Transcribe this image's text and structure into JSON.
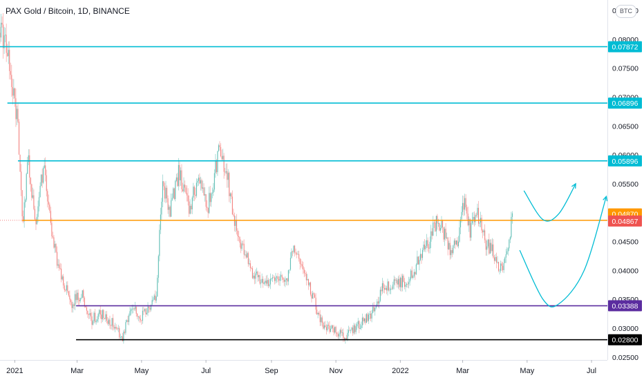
{
  "header": {
    "title": "PAX Gold / Bitcoin, 1D, BINANCE",
    "currency": "BTC"
  },
  "chart_data": {
    "type": "candlestick",
    "title": "PAX Gold / Bitcoin, 1D, BINANCE",
    "currency": "BTC",
    "ylim": [
      0.0245,
      0.0868
    ],
    "y_ticks": [
      "0.02500",
      "0.03000",
      "0.03500",
      "0.04000",
      "0.04500",
      "0.05000",
      "0.05500",
      "0.06000",
      "0.06500",
      "0.07000",
      "0.07500",
      "0.08000",
      "0.08500"
    ],
    "x_range": [
      "2020-12-18",
      "2022-07-16"
    ],
    "x_ticks": [
      {
        "date": "2021-01-01",
        "label": "2021"
      },
      {
        "date": "2021-03-01",
        "label": "Mar"
      },
      {
        "date": "2021-05-01",
        "label": "May"
      },
      {
        "date": "2021-07-01",
        "label": "Jul"
      },
      {
        "date": "2021-09-01",
        "label": "Sep"
      },
      {
        "date": "2021-11-01",
        "label": "Nov"
      },
      {
        "date": "2022-01-01",
        "label": "2022"
      },
      {
        "date": "2022-03-01",
        "label": "Mar"
      },
      {
        "date": "2022-05-01",
        "label": "May"
      },
      {
        "date": "2022-07-01",
        "label": "Jul"
      }
    ],
    "horizontal_levels": [
      {
        "value": 0.07872,
        "label": "0.07872",
        "color": "#00bcd4",
        "start": "2020-12-18"
      },
      {
        "value": 0.06896,
        "label": "0.06896",
        "color": "#00bcd4",
        "start": "2020-12-25"
      },
      {
        "value": 0.05896,
        "label": "0.05896",
        "color": "#00bcd4",
        "start": "2021-01-04"
      },
      {
        "value": 0.04867,
        "label": "0.04867",
        "color": "#ff9800",
        "start": "2021-01-08"
      },
      {
        "value": 0.03388,
        "label": "0.03388",
        "color": "#5b2c9f",
        "start": "2021-02-28"
      },
      {
        "value": 0.028,
        "label": "0.02800",
        "color": "#000000",
        "start": "2021-02-28"
      }
    ],
    "price_labels": [
      {
        "value": 0.0487,
        "label": "0.04870",
        "color": "#ff9800"
      },
      {
        "value": 0.04867,
        "label": "0.04867",
        "color": "#ef5350"
      }
    ],
    "projection_arrows": [
      {
        "points": [
          [
            "2022-04-28",
            0.0538
          ],
          [
            "2022-05-16",
            0.0488
          ],
          [
            "2022-05-31",
            0.0498
          ],
          [
            "2022-06-16",
            0.055
          ]
        ]
      },
      {
        "points": [
          [
            "2022-04-24",
            0.0435
          ],
          [
            "2022-05-16",
            0.035
          ],
          [
            "2022-05-31",
            0.0342
          ],
          [
            "2022-06-24",
            0.04
          ],
          [
            "2022-07-15",
            0.0528
          ]
        ]
      }
    ],
    "candle_path": [
      [
        "2020-12-18",
        0.082
      ],
      [
        "2020-12-24",
        0.079
      ],
      [
        "2020-12-31",
        0.07
      ],
      [
        "2021-01-04",
        0.066
      ],
      [
        "2021-01-08",
        0.048
      ],
      [
        "2021-01-14",
        0.059
      ],
      [
        "2021-01-21",
        0.047
      ],
      [
        "2021-01-28",
        0.0585
      ],
      [
        "2021-02-04",
        0.048
      ],
      [
        "2021-02-10",
        0.041
      ],
      [
        "2021-02-16",
        0.038
      ],
      [
        "2021-02-24",
        0.0345
      ],
      [
        "2021-03-05",
        0.036
      ],
      [
        "2021-03-15",
        0.0315
      ],
      [
        "2021-03-24",
        0.0325
      ],
      [
        "2021-04-03",
        0.031
      ],
      [
        "2021-04-13",
        0.0285
      ],
      [
        "2021-04-22",
        0.034
      ],
      [
        "2021-05-01",
        0.032
      ],
      [
        "2021-05-08",
        0.0335
      ],
      [
        "2021-05-15",
        0.036
      ],
      [
        "2021-05-21",
        0.056
      ],
      [
        "2021-05-27",
        0.05
      ],
      [
        "2021-06-05",
        0.057
      ],
      [
        "2021-06-15",
        0.051
      ],
      [
        "2021-06-25",
        0.0565
      ],
      [
        "2021-07-03",
        0.051
      ],
      [
        "2021-07-13",
        0.06
      ],
      [
        "2021-07-20",
        0.058
      ],
      [
        "2021-07-28",
        0.048
      ],
      [
        "2021-08-06",
        0.043
      ],
      [
        "2021-08-16",
        0.039
      ],
      [
        "2021-08-28",
        0.038
      ],
      [
        "2021-09-08",
        0.039
      ],
      [
        "2021-09-16",
        0.0385
      ],
      [
        "2021-09-22",
        0.044
      ],
      [
        "2021-09-30",
        0.04
      ],
      [
        "2021-10-06",
        0.038
      ],
      [
        "2021-10-14",
        0.033
      ],
      [
        "2021-10-22",
        0.03
      ],
      [
        "2021-11-01",
        0.0295
      ],
      [
        "2021-11-10",
        0.0285
      ],
      [
        "2021-11-20",
        0.03
      ],
      [
        "2021-11-30",
        0.032
      ],
      [
        "2021-12-08",
        0.033
      ],
      [
        "2021-12-16",
        0.0375
      ],
      [
        "2021-12-28",
        0.0375
      ],
      [
        "2022-01-08",
        0.0385
      ],
      [
        "2022-01-14",
        0.04
      ],
      [
        "2022-01-20",
        0.043
      ],
      [
        "2022-01-28",
        0.045
      ],
      [
        "2022-02-05",
        0.049
      ],
      [
        "2022-02-12",
        0.046
      ],
      [
        "2022-02-18",
        0.043
      ],
      [
        "2022-02-24",
        0.045
      ],
      [
        "2022-03-02",
        0.052
      ],
      [
        "2022-03-08",
        0.047
      ],
      [
        "2022-03-14",
        0.051
      ],
      [
        "2022-03-22",
        0.045
      ],
      [
        "2022-03-30",
        0.043
      ],
      [
        "2022-04-07",
        0.04
      ],
      [
        "2022-04-13",
        0.045
      ],
      [
        "2022-04-17",
        0.049
      ]
    ]
  }
}
